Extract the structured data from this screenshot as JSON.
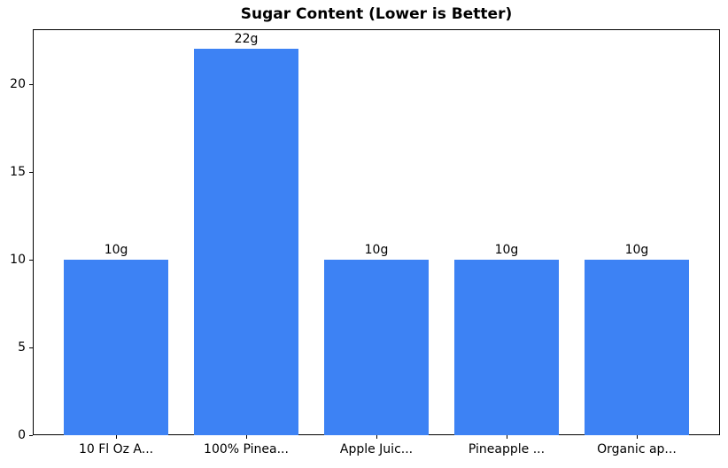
{
  "chart_data": {
    "type": "bar",
    "title": "Sugar Content (Lower is Better)",
    "categories": [
      "10 Fl Oz A...",
      "100% Pinea...",
      "Apple Juic...",
      "Pineapple ...",
      "Organic ap..."
    ],
    "values": [
      10,
      22,
      10,
      10,
      10
    ],
    "value_labels": [
      "10g",
      "22g",
      "10g",
      "10g",
      "10g"
    ],
    "yticks": [
      0,
      5,
      10,
      15,
      20
    ],
    "ylim": [
      0,
      23.13
    ],
    "xlim": [
      -0.64,
      4.64
    ],
    "bar_width": 0.8,
    "xlabel": "",
    "ylabel": "",
    "grid": false,
    "legend": null,
    "bar_color": "#3d82f4",
    "spine_color": "#000000",
    "background_color": "#ffffff",
    "text_color": "#000000"
  }
}
